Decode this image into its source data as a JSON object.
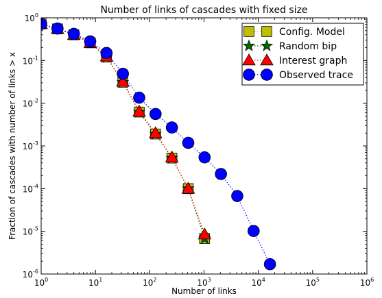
{
  "chart_data": {
    "type": "scatter",
    "title": "Number of links of cascades with fixed size",
    "xlabel": "Number of links",
    "ylabel": "Fraction of cascades with number of links > x",
    "xscale": "log",
    "yscale": "log",
    "xlim": [
      1,
      1000000
    ],
    "ylim": [
      1e-06,
      1
    ],
    "x_ticks": [
      {
        "base": "10",
        "exp": "0",
        "value": 1
      },
      {
        "base": "10",
        "exp": "1",
        "value": 10
      },
      {
        "base": "10",
        "exp": "2",
        "value": 100
      },
      {
        "base": "10",
        "exp": "3",
        "value": 1000
      },
      {
        "base": "10",
        "exp": "4",
        "value": 10000
      },
      {
        "base": "10",
        "exp": "5",
        "value": 100000
      },
      {
        "base": "10",
        "exp": "6",
        "value": 1000000
      }
    ],
    "y_ticks": [
      {
        "base": "10",
        "exp": "0",
        "value": 1
      },
      {
        "base": "10",
        "exp": "-1",
        "value": 0.1
      },
      {
        "base": "10",
        "exp": "-2",
        "value": 0.01
      },
      {
        "base": "10",
        "exp": "-3",
        "value": 0.001
      },
      {
        "base": "10",
        "exp": "-4",
        "value": 0.0001
      },
      {
        "base": "10",
        "exp": "-5",
        "value": 1e-05
      },
      {
        "base": "10",
        "exp": "-6",
        "value": 1e-06
      }
    ],
    "legend_position": "top-right",
    "grid": false,
    "series": [
      {
        "name": "Config. Model",
        "marker": "square",
        "color": "#bfbf00",
        "line_color": "#bfbf00",
        "x": [
          1,
          2,
          4,
          8,
          16,
          32,
          64,
          128,
          256,
          512,
          1024
        ],
        "y": [
          0.72,
          0.55,
          0.4,
          0.26,
          0.12,
          0.031,
          0.0062,
          0.0019,
          0.00052,
          0.0001,
          6.8e-06
        ]
      },
      {
        "name": "Random bip",
        "marker": "star",
        "color": "#006400",
        "line_color": "#006400",
        "x": [
          1,
          2,
          4,
          8,
          16,
          32,
          64,
          128,
          256,
          512,
          1024
        ],
        "y": [
          0.72,
          0.55,
          0.4,
          0.26,
          0.12,
          0.031,
          0.0062,
          0.0019,
          0.00052,
          0.0001,
          6.8e-06
        ]
      },
      {
        "name": "Interest graph",
        "marker": "triangle",
        "color": "#ff0000",
        "line_color": "#ff0000",
        "x": [
          1,
          2,
          4,
          8,
          16,
          32,
          64,
          128,
          256,
          512,
          1024
        ],
        "y": [
          0.72,
          0.55,
          0.4,
          0.26,
          0.125,
          0.032,
          0.0064,
          0.002,
          0.00054,
          0.0001,
          8.5e-06
        ]
      },
      {
        "name": "Observed trace",
        "marker": "circle",
        "color": "#0000ff",
        "line_color": "#0000ff",
        "x": [
          1,
          2,
          4,
          8,
          16,
          32,
          64,
          128,
          256,
          512,
          1024,
          2048,
          4096,
          8192,
          16384
        ],
        "y": [
          0.72,
          0.56,
          0.42,
          0.28,
          0.15,
          0.049,
          0.0135,
          0.0056,
          0.0027,
          0.00118,
          0.00054,
          0.00022,
          6.7e-05,
          1.02e-05,
          1.7e-06
        ]
      }
    ]
  }
}
